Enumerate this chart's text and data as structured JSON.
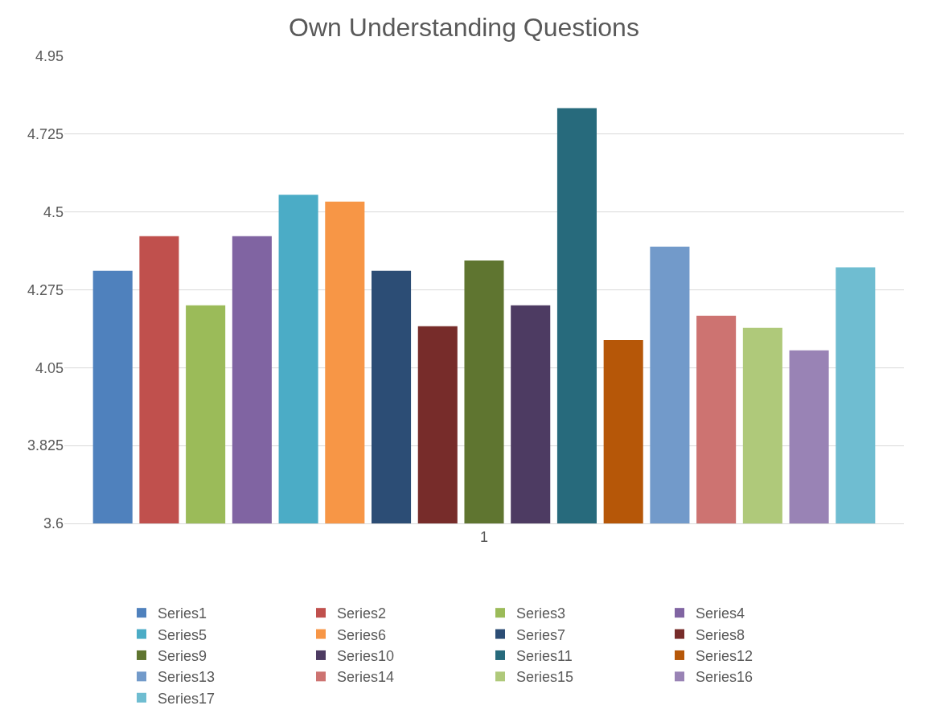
{
  "chart_data": {
    "type": "bar",
    "title": "Own Understanding Questions",
    "categories": [
      "1"
    ],
    "series": [
      {
        "name": "Series1",
        "color": "#4f81bd",
        "values": [
          4.33
        ]
      },
      {
        "name": "Series2",
        "color": "#c0504d",
        "values": [
          4.43
        ]
      },
      {
        "name": "Series3",
        "color": "#9bbb59",
        "values": [
          4.23
        ]
      },
      {
        "name": "Series4",
        "color": "#8064a2",
        "values": [
          4.43
        ]
      },
      {
        "name": "Series5",
        "color": "#4bacc6",
        "values": [
          4.55
        ]
      },
      {
        "name": "Series6",
        "color": "#f79646",
        "values": [
          4.53
        ]
      },
      {
        "name": "Series7",
        "color": "#2c4d75",
        "values": [
          4.33
        ]
      },
      {
        "name": "Series8",
        "color": "#772c2a",
        "values": [
          4.17
        ]
      },
      {
        "name": "Series9",
        "color": "#5f7530",
        "values": [
          4.36
        ]
      },
      {
        "name": "Series10",
        "color": "#4d3b62",
        "values": [
          4.23
        ]
      },
      {
        "name": "Series11",
        "color": "#276a7c",
        "values": [
          4.8
        ]
      },
      {
        "name": "Series12",
        "color": "#b65708",
        "values": [
          4.13
        ]
      },
      {
        "name": "Series13",
        "color": "#729aca",
        "values": [
          4.4
        ]
      },
      {
        "name": "Series14",
        "color": "#cd7371",
        "values": [
          4.2
        ]
      },
      {
        "name": "Series15",
        "color": "#afc97a",
        "values": [
          4.165
        ]
      },
      {
        "name": "Series16",
        "color": "#9983b5",
        "values": [
          4.1
        ]
      },
      {
        "name": "Series17",
        "color": "#6fbdd1",
        "values": [
          4.34
        ]
      }
    ],
    "ylim": [
      3.6,
      4.95
    ],
    "yticks": [
      3.6,
      3.825,
      4.05,
      4.275,
      4.5,
      4.725,
      4.95
    ],
    "grid": "y",
    "legend": "bottom"
  }
}
